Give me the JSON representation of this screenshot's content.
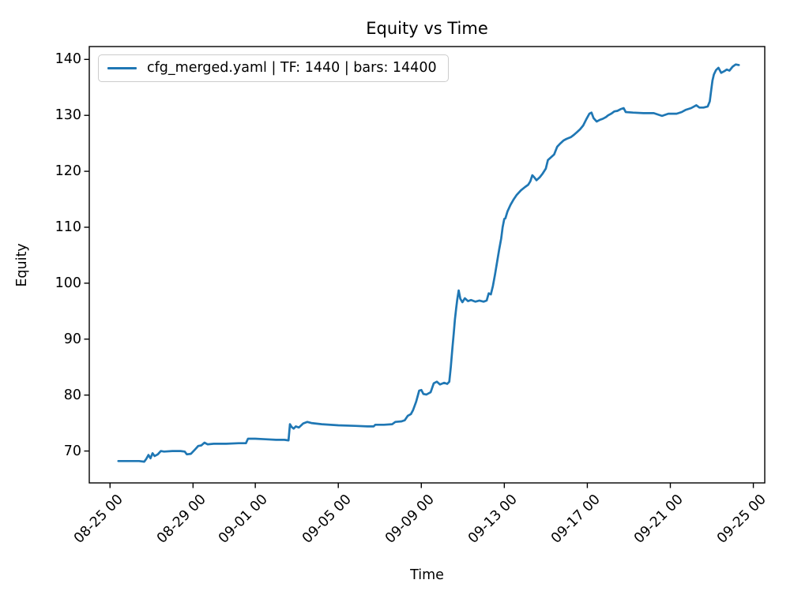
{
  "figure": {
    "title": "Equity vs Time",
    "xlabel": "Time",
    "ylabel": "Equity"
  },
  "legend": {
    "label": "cfg_merged.yaml | TF: 1440 | bars: 14400",
    "line_color": "#1f77b4",
    "position": "upper left"
  },
  "chart_data": {
    "type": "line",
    "title": "Equity vs Time",
    "xlabel": "Time",
    "ylabel": "Equity",
    "grid": false,
    "line_color": "#1f77b4",
    "x_unit": "days after 08-25 00:00, labels formatted MM-DD HH",
    "x_ticks": [
      {
        "day": 0,
        "label": "08-25 00"
      },
      {
        "day": 4,
        "label": "08-29 00"
      },
      {
        "day": 7,
        "label": "09-01 00"
      },
      {
        "day": 11,
        "label": "09-05 00"
      },
      {
        "day": 15,
        "label": "09-09 00"
      },
      {
        "day": 19,
        "label": "09-13 00"
      },
      {
        "day": 23,
        "label": "09-17 00"
      },
      {
        "day": 27,
        "label": "09-21 00"
      },
      {
        "day": 31,
        "label": "09-25 00"
      }
    ],
    "y_ticks": [
      70,
      80,
      90,
      100,
      110,
      120,
      130,
      140
    ],
    "xlim_days": [
      -1.0,
      31.55
    ],
    "ylim": [
      64.3,
      142.3
    ],
    "series": [
      {
        "name": "cfg_merged.yaml | TF: 1440 | bars: 14400",
        "points": [
          [
            0.4,
            68.2
          ],
          [
            0.9,
            68.2
          ],
          [
            1.4,
            68.2
          ],
          [
            1.65,
            68.1
          ],
          [
            1.75,
            68.6
          ],
          [
            1.85,
            69.3
          ],
          [
            1.95,
            68.7
          ],
          [
            2.05,
            69.6
          ],
          [
            2.15,
            69.1
          ],
          [
            2.3,
            69.4
          ],
          [
            2.45,
            70.0
          ],
          [
            2.6,
            69.9
          ],
          [
            3.0,
            70.0
          ],
          [
            3.4,
            70.0
          ],
          [
            3.6,
            69.9
          ],
          [
            3.7,
            69.4
          ],
          [
            3.9,
            69.5
          ],
          [
            4.1,
            70.3
          ],
          [
            4.25,
            70.9
          ],
          [
            4.4,
            71.0
          ],
          [
            4.55,
            71.5
          ],
          [
            4.7,
            71.2
          ],
          [
            5.0,
            71.3
          ],
          [
            5.6,
            71.3
          ],
          [
            6.2,
            71.4
          ],
          [
            6.55,
            71.4
          ],
          [
            6.65,
            72.2
          ],
          [
            7.0,
            72.2
          ],
          [
            7.5,
            72.1
          ],
          [
            8.0,
            72.0
          ],
          [
            8.4,
            72.0
          ],
          [
            8.6,
            71.9
          ],
          [
            8.67,
            74.8
          ],
          [
            8.75,
            74.3
          ],
          [
            8.85,
            74.0
          ],
          [
            8.95,
            74.4
          ],
          [
            9.1,
            74.2
          ],
          [
            9.3,
            74.9
          ],
          [
            9.5,
            75.2
          ],
          [
            9.7,
            75.0
          ],
          [
            10.2,
            74.8
          ],
          [
            11.0,
            74.6
          ],
          [
            11.8,
            74.5
          ],
          [
            12.4,
            74.4
          ],
          [
            12.7,
            74.4
          ],
          [
            12.78,
            74.7
          ],
          [
            13.2,
            74.7
          ],
          [
            13.6,
            74.8
          ],
          [
            13.75,
            75.2
          ],
          [
            14.05,
            75.3
          ],
          [
            14.2,
            75.5
          ],
          [
            14.35,
            76.3
          ],
          [
            14.5,
            76.6
          ],
          [
            14.6,
            77.3
          ],
          [
            14.75,
            78.8
          ],
          [
            14.9,
            80.8
          ],
          [
            15.0,
            80.9
          ],
          [
            15.1,
            80.2
          ],
          [
            15.25,
            80.1
          ],
          [
            15.45,
            80.5
          ],
          [
            15.6,
            82.1
          ],
          [
            15.75,
            82.4
          ],
          [
            15.9,
            81.9
          ],
          [
            16.1,
            82.2
          ],
          [
            16.25,
            82.0
          ],
          [
            16.35,
            82.4
          ],
          [
            16.42,
            85.0
          ],
          [
            16.5,
            88.5
          ],
          [
            16.56,
            91.0
          ],
          [
            16.62,
            93.5
          ],
          [
            16.68,
            95.5
          ],
          [
            16.73,
            97.0
          ],
          [
            16.8,
            98.7
          ],
          [
            16.88,
            97.2
          ],
          [
            16.98,
            96.6
          ],
          [
            17.1,
            97.3
          ],
          [
            17.25,
            96.8
          ],
          [
            17.4,
            97.0
          ],
          [
            17.6,
            96.7
          ],
          [
            17.8,
            96.9
          ],
          [
            18.0,
            96.7
          ],
          [
            18.15,
            96.9
          ],
          [
            18.25,
            98.2
          ],
          [
            18.35,
            98.0
          ],
          [
            18.45,
            99.5
          ],
          [
            18.55,
            101.5
          ],
          [
            18.65,
            103.8
          ],
          [
            18.75,
            106.0
          ],
          [
            18.85,
            108.0
          ],
          [
            18.92,
            110.0
          ],
          [
            19.0,
            111.5
          ],
          [
            19.05,
            111.6
          ],
          [
            19.15,
            112.8
          ],
          [
            19.3,
            114.0
          ],
          [
            19.45,
            115.0
          ],
          [
            19.6,
            115.8
          ],
          [
            19.8,
            116.6
          ],
          [
            20.0,
            117.2
          ],
          [
            20.15,
            117.6
          ],
          [
            20.25,
            118.2
          ],
          [
            20.35,
            119.3
          ],
          [
            20.45,
            118.9
          ],
          [
            20.55,
            118.4
          ],
          [
            20.7,
            118.9
          ],
          [
            20.85,
            119.6
          ],
          [
            21.0,
            120.5
          ],
          [
            21.1,
            122.0
          ],
          [
            21.25,
            122.5
          ],
          [
            21.4,
            123.0
          ],
          [
            21.55,
            124.4
          ],
          [
            21.7,
            125.0
          ],
          [
            21.85,
            125.5
          ],
          [
            22.0,
            125.8
          ],
          [
            22.2,
            126.1
          ],
          [
            22.35,
            126.5
          ],
          [
            22.5,
            127.0
          ],
          [
            22.65,
            127.5
          ],
          [
            22.8,
            128.2
          ],
          [
            22.95,
            129.3
          ],
          [
            23.1,
            130.3
          ],
          [
            23.2,
            130.5
          ],
          [
            23.3,
            129.5
          ],
          [
            23.45,
            128.9
          ],
          [
            23.6,
            129.2
          ],
          [
            23.75,
            129.4
          ],
          [
            23.9,
            129.7
          ],
          [
            24.0,
            130.0
          ],
          [
            24.15,
            130.3
          ],
          [
            24.3,
            130.7
          ],
          [
            24.45,
            130.8
          ],
          [
            24.6,
            131.1
          ],
          [
            24.75,
            131.3
          ],
          [
            24.85,
            130.6
          ],
          [
            25.2,
            130.5
          ],
          [
            25.7,
            130.4
          ],
          [
            26.2,
            130.4
          ],
          [
            26.6,
            129.9
          ],
          [
            26.9,
            130.3
          ],
          [
            27.3,
            130.3
          ],
          [
            27.55,
            130.6
          ],
          [
            27.75,
            131.0
          ],
          [
            28.0,
            131.3
          ],
          [
            28.25,
            131.8
          ],
          [
            28.4,
            131.4
          ],
          [
            28.6,
            131.4
          ],
          [
            28.8,
            131.6
          ],
          [
            28.9,
            132.5
          ],
          [
            28.97,
            134.5
          ],
          [
            29.03,
            136.2
          ],
          [
            29.1,
            137.3
          ],
          [
            29.2,
            138.1
          ],
          [
            29.32,
            138.5
          ],
          [
            29.45,
            137.6
          ],
          [
            29.6,
            137.9
          ],
          [
            29.72,
            138.2
          ],
          [
            29.85,
            138.0
          ],
          [
            30.0,
            138.7
          ],
          [
            30.15,
            139.1
          ],
          [
            30.3,
            139.0
          ]
        ]
      }
    ]
  }
}
